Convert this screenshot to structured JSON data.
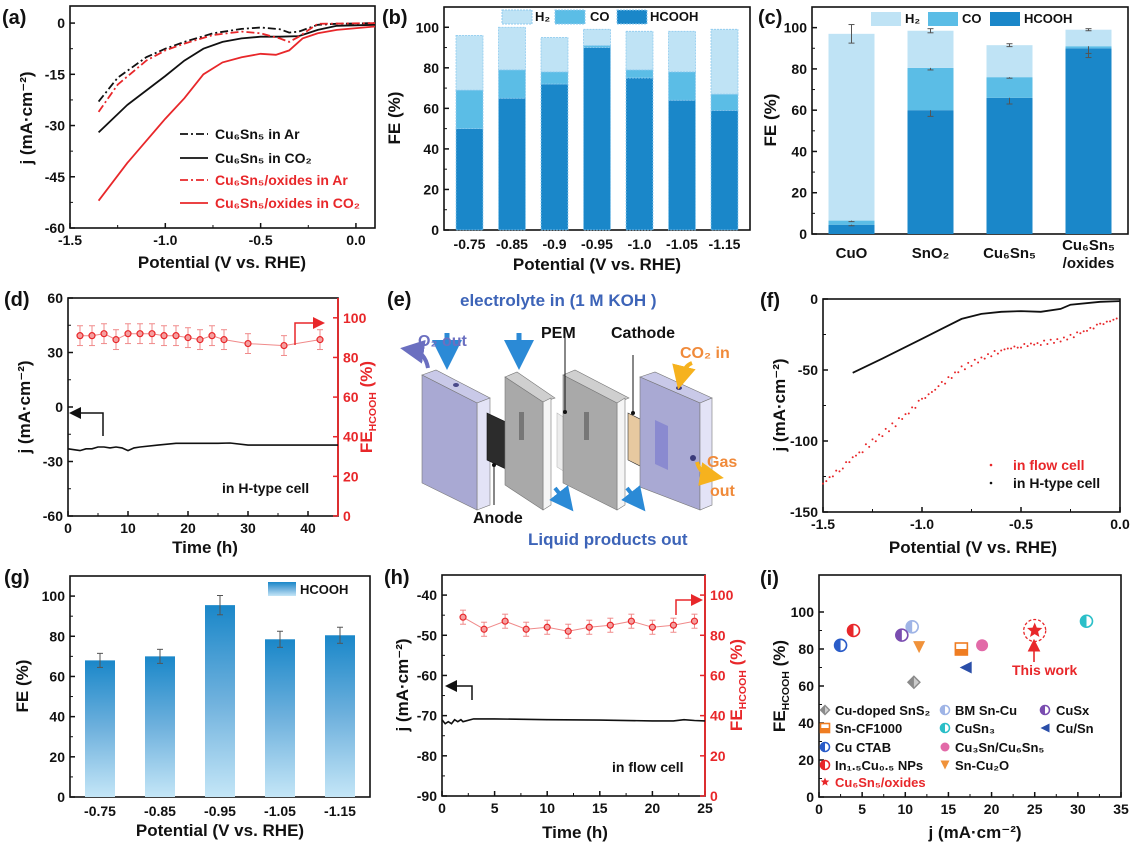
{
  "colors": {
    "hcooh": "#1a87c9",
    "co": "#5bbde6",
    "h2": "#bfe3f5",
    "red": "#e8272a",
    "black": "#111111",
    "blue_text": "#3d64b8",
    "orange_text": "#f08a3a"
  },
  "chart_data": [
    {
      "panel": "(a)",
      "type": "line",
      "xlabel": "Potential (V vs. RHE)",
      "ylabel": "j (mA·cm⁻²)",
      "xlim": [
        -1.5,
        0.1
      ],
      "ylim": [
        -60,
        5
      ],
      "xticks": [
        -1.5,
        -1.0,
        -0.5,
        0.0
      ],
      "xtick_labels": [
        "-1.5",
        "-1.0",
        "-0.5",
        "0.0"
      ],
      "yticks": [
        0,
        -15,
        -30,
        -45,
        -60
      ],
      "ytick_labels": [
        "0",
        "-15",
        "-30",
        "-45",
        "-60"
      ],
      "legend": "inside-right",
      "series": [
        {
          "name": "Cu₆Sn₅ in Ar",
          "color": "#111111",
          "style": "dash-dot",
          "x": [
            -1.35,
            -1.25,
            -1.1,
            -1.0,
            -0.9,
            -0.75,
            -0.6,
            -0.5,
            -0.4,
            -0.35,
            -0.3,
            -0.2,
            -0.1,
            0.1
          ],
          "y": [
            -23,
            -16,
            -10,
            -7.5,
            -5.5,
            -3,
            -1.7,
            -1.3,
            -1.8,
            -2.8,
            -2.5,
            -0.5,
            -0.2,
            0
          ]
        },
        {
          "name": "Cu₆Sn₅ in CO₂",
          "color": "#111111",
          "style": "solid",
          "x": [
            -1.35,
            -1.2,
            -1.0,
            -0.9,
            -0.8,
            -0.7,
            -0.6,
            -0.5,
            -0.4,
            -0.3,
            -0.2,
            -0.1,
            0.1
          ],
          "y": [
            -32,
            -24,
            -15.5,
            -11,
            -7.5,
            -5.5,
            -4.5,
            -4,
            -4,
            -3.8,
            -2,
            -0.8,
            -0.5
          ]
        },
        {
          "name": "Cu₆Sn₅/oxides in Ar",
          "color": "#e8272a",
          "style": "dash-dot",
          "x": [
            -1.35,
            -1.25,
            -1.1,
            -1.0,
            -0.9,
            -0.75,
            -0.6,
            -0.5,
            -0.4,
            -0.35,
            -0.3,
            -0.2,
            0.1
          ],
          "y": [
            -26,
            -18,
            -11,
            -8,
            -6,
            -3.5,
            -2.5,
            -3,
            -4.5,
            -5.5,
            -4,
            -0.2,
            0
          ]
        },
        {
          "name": "Cu₆Sn₅/oxides in CO₂",
          "color": "#e8272a",
          "style": "solid",
          "x": [
            -1.35,
            -1.2,
            -1.0,
            -0.9,
            -0.8,
            -0.7,
            -0.6,
            -0.5,
            -0.42,
            -0.35,
            -0.28,
            -0.2,
            -0.1,
            0.1
          ],
          "y": [
            -52,
            -41,
            -28,
            -22,
            -15,
            -11.5,
            -10,
            -9,
            -9.3,
            -8,
            -4.5,
            -3,
            -2,
            -1
          ]
        }
      ]
    },
    {
      "panel": "(b)",
      "type": "bar",
      "stacked": true,
      "xlabel": "Potential (V vs. RHE)",
      "ylabel": "FE (%)",
      "ylim": [
        0,
        110
      ],
      "yticks": [
        0,
        20,
        40,
        60,
        80,
        100
      ],
      "ytick_labels": [
        "0",
        "20",
        "40",
        "60",
        "80",
        "100"
      ],
      "categories": [
        "-0.75",
        "-0.85",
        "-0.9",
        "-0.95",
        "-1.0",
        "-1.05",
        "-1.15"
      ],
      "legend": "top",
      "series": [
        {
          "name": "HCOOH",
          "color": "#1a87c9",
          "values": [
            50,
            65,
            72,
            90,
            75,
            64,
            59
          ]
        },
        {
          "name": "CO",
          "color": "#5bbde6",
          "values": [
            19,
            14,
            6,
            1,
            4,
            14,
            8
          ]
        },
        {
          "name": "H₂",
          "color": "#bfe3f5",
          "values": [
            27,
            21,
            17,
            8,
            19,
            20,
            32
          ]
        }
      ]
    },
    {
      "panel": "(c)",
      "type": "bar",
      "stacked": true,
      "xlabel": "",
      "ylabel": "FE (%)",
      "ylim": [
        0,
        110
      ],
      "yticks": [
        0,
        20,
        40,
        60,
        80,
        100
      ],
      "ytick_labels": [
        "0",
        "20",
        "40",
        "60",
        "80",
        "100"
      ],
      "categories": [
        "CuO",
        "SnO₂",
        "Cu₆Sn₅",
        "Cu₆Sn₅ /oxides"
      ],
      "legend": "top",
      "series": [
        {
          "name": "HCOOH",
          "color": "#1a87c9",
          "values": [
            4.5,
            60,
            66,
            90
          ],
          "errors": [
            0.5,
            3,
            3,
            4.5
          ]
        },
        {
          "name": "CO",
          "color": "#5bbde6",
          "values": [
            2,
            20.5,
            10,
            1
          ],
          "errors": [
            0.5,
            1,
            0.5,
            3.5
          ]
        },
        {
          "name": "H₂",
          "color": "#bfe3f5",
          "values": [
            90.5,
            18,
            15.5,
            8
          ],
          "errors": [
            4.5,
            1,
            0.7,
            0.5
          ]
        }
      ]
    },
    {
      "panel": "(d)",
      "type": "line",
      "xlabel": "Time (h)",
      "ylabel": "j (mA·cm⁻²)",
      "ylabel_right": {
        "main": "FE",
        "sub": "HCOOH",
        "tail": " (%)"
      },
      "xlim": [
        0,
        45
      ],
      "ylim": [
        -60,
        60
      ],
      "ylim_right": [
        0,
        110
      ],
      "xticks": [
        0,
        10,
        20,
        30,
        40
      ],
      "xtick_labels": [
        "0",
        "10",
        "20",
        "30",
        "40"
      ],
      "yticks": [
        60,
        30,
        0,
        -30,
        -60
      ],
      "ytick_labels": [
        "60",
        "30",
        "0",
        "-30",
        "-60"
      ],
      "yticks_right": [
        0,
        20,
        40,
        60,
        80,
        100
      ],
      "ytick_right_labels": [
        "0",
        "20",
        "40",
        "60",
        "80",
        "100"
      ],
      "annotation": "in H-type cell",
      "current": {
        "color": "#111111",
        "x": [
          0,
          1,
          2,
          3,
          4,
          5,
          6,
          7,
          8,
          9,
          10,
          11,
          12,
          15,
          18,
          20,
          25,
          27,
          30,
          35,
          40,
          45
        ],
        "y": [
          -23,
          -23.5,
          -24,
          -23,
          -23,
          -22,
          -22,
          -22.5,
          -22,
          -22.5,
          -24,
          -22.5,
          -22,
          -21,
          -20,
          -20,
          -20,
          -19.8,
          -21,
          -21,
          -21,
          -21
        ]
      },
      "fe": {
        "color": "#e8272a",
        "x": [
          2,
          4,
          6,
          8,
          10,
          12,
          14,
          16,
          18,
          20,
          22,
          24,
          26,
          30,
          36,
          42
        ],
        "y": [
          91,
          91,
          92,
          89,
          92,
          92,
          92,
          91,
          91,
          90,
          89,
          91,
          89,
          87,
          86,
          89
        ],
        "errors": [
          5,
          5,
          5,
          5,
          5,
          5,
          5,
          5,
          5,
          5,
          5,
          5,
          5,
          5,
          5,
          5
        ]
      }
    },
    {
      "panel": "(f)",
      "type": "line",
      "xlabel": "Potential (V vs. RHE)",
      "ylabel": "j (mA·cm⁻²)",
      "xlim": [
        -1.5,
        0
      ],
      "ylim": [
        -150,
        0
      ],
      "xticks": [
        -1.5,
        -1.0,
        -0.5,
        0.0
      ],
      "xtick_labels": [
        "-1.5",
        "-1.0",
        "-0.5",
        "0.0"
      ],
      "yticks": [
        0,
        -50,
        -100,
        -150
      ],
      "ytick_labels": [
        "0",
        "-50",
        "-100",
        "-150"
      ],
      "legend": "bottom-right",
      "series": [
        {
          "name": "in flow cell",
          "color": "#e8272a",
          "style": "dots",
          "x": [
            -1.5,
            -1.4,
            -1.3,
            -1.2,
            -1.1,
            -1.0,
            -0.9,
            -0.8,
            -0.7,
            -0.6,
            -0.5,
            -0.4,
            -0.3,
            -0.2,
            -0.1,
            0
          ],
          "y": [
            -130,
            -118,
            -106,
            -95,
            -84,
            -71,
            -60,
            -49,
            -42,
            -36,
            -33,
            -31,
            -29,
            -24,
            -18,
            -13
          ]
        },
        {
          "name": "in H-type cell",
          "color": "#111111",
          "style": "solid",
          "x": [
            -1.35,
            -1.2,
            -1.0,
            -0.9,
            -0.8,
            -0.7,
            -0.6,
            -0.5,
            -0.4,
            -0.3,
            -0.25,
            -0.1,
            0
          ],
          "y": [
            -52,
            -42,
            -28,
            -21,
            -14,
            -10.5,
            -9,
            -8.5,
            -9,
            -7,
            -4,
            -2,
            -1.5
          ]
        }
      ]
    },
    {
      "panel": "(g)",
      "type": "bar",
      "xlabel": "Potential (V vs. RHE)",
      "ylabel": "FE (%)",
      "ylim": [
        0,
        110
      ],
      "yticks": [
        0,
        20,
        40,
        60,
        80,
        100
      ],
      "ytick_labels": [
        "0",
        "20",
        "40",
        "60",
        "80",
        "100"
      ],
      "categories": [
        "-0.75",
        "-0.85",
        "-0.95",
        "-1.05",
        "-1.15"
      ],
      "legend": "top-right",
      "series": [
        {
          "name": "HCOOH",
          "color": "#1a87c9",
          "values": [
            68,
            70,
            95.5,
            78.5,
            80.5
          ],
          "errors": [
            3.5,
            3.5,
            4.8,
            4,
            4
          ]
        }
      ]
    },
    {
      "panel": "(h)",
      "type": "line",
      "xlabel": "Time (h)",
      "ylabel": "j (mA·cm⁻²)",
      "ylabel_right": {
        "main": "FE",
        "sub": "HCOOH",
        "tail": " (%)"
      },
      "xlim": [
        0,
        25
      ],
      "ylim": [
        -90,
        -35
      ],
      "ylim_right": [
        0,
        110
      ],
      "xticks": [
        0,
        5,
        10,
        15,
        20,
        25
      ],
      "xtick_labels": [
        "0",
        "5",
        "10",
        "15",
        "20",
        "25"
      ],
      "yticks": [
        -40,
        -50,
        -60,
        -70,
        -80,
        -90
      ],
      "ytick_labels": [
        "-40",
        "-50",
        "-60",
        "-70",
        "-80",
        "-90"
      ],
      "yticks_right": [
        0,
        20,
        40,
        60,
        80,
        100
      ],
      "ytick_right_labels": [
        "0",
        "20",
        "40",
        "60",
        "80",
        "100"
      ],
      "annotation": "in flow cell",
      "current": {
        "color": "#111111",
        "x": [
          0,
          0.3,
          0.6,
          0.9,
          1.2,
          1.5,
          1.8,
          2,
          3,
          5,
          10,
          15,
          20,
          22,
          23,
          24,
          25
        ],
        "y": [
          -71,
          -72,
          -71.5,
          -72,
          -71,
          -71.5,
          -71,
          -71.5,
          -70.8,
          -70.8,
          -71,
          -71.1,
          -71.3,
          -71.3,
          -71,
          -71.2,
          -71.3
        ]
      },
      "fe": {
        "color": "#e8272a",
        "x": [
          2,
          4,
          6,
          8,
          10,
          12,
          14,
          16,
          18,
          20,
          22,
          24
        ],
        "y": [
          89,
          83,
          87,
          83,
          84,
          82,
          84,
          85,
          87,
          84,
          85,
          87
        ],
        "errors": [
          3.5,
          3.5,
          3.5,
          3.5,
          3.5,
          3.5,
          3.5,
          3.5,
          3.5,
          3.5,
          3.5,
          3.5
        ]
      }
    },
    {
      "panel": "(i)",
      "type": "scatter",
      "xlabel": "j (mA·cm⁻²)",
      "ylabel": {
        "main": "FE",
        "sub": "HCOOH",
        "tail": " (%)"
      },
      "xlim": [
        0,
        35
      ],
      "ylim": [
        0,
        120
      ],
      "xticks": [
        0,
        5,
        10,
        15,
        20,
        25,
        30,
        35
      ],
      "xtick_labels": [
        "0",
        "5",
        "10",
        "15",
        "20",
        "25",
        "30",
        "35"
      ],
      "yticks": [
        0,
        20,
        40,
        60,
        80,
        100
      ],
      "ytick_labels": [
        "0",
        "20",
        "40",
        "60",
        "80",
        "100"
      ],
      "legend": "bottom-left",
      "annotation": "This work",
      "points": [
        {
          "name": "Cu-doped SnS₂",
          "x": 11,
          "y": 62,
          "marker": "diamond",
          "color": "#8a8a8a"
        },
        {
          "name": "BM Sn-Cu",
          "x": 10.8,
          "y": 92,
          "marker": "half-circle",
          "color": "#9fb4e6"
        },
        {
          "name": "CuSx",
          "x": 9.6,
          "y": 87.5,
          "marker": "half-circle",
          "color": "#7a4db0"
        },
        {
          "name": "Sn-CF1000",
          "x": 16.5,
          "y": 80,
          "marker": "half-square",
          "color": "#ef7d22"
        },
        {
          "name": "CuSn₃",
          "x": 31,
          "y": 95,
          "marker": "half-circle",
          "color": "#2bbfc8"
        },
        {
          "name": "Cu/Sn",
          "x": 17,
          "y": 70,
          "marker": "triangle-left",
          "color": "#2a4ea8"
        },
        {
          "name": "Cu CTAB",
          "x": 2.5,
          "y": 82,
          "marker": "half-circle",
          "color": "#2a5cc8"
        },
        {
          "name": "Cu₃Sn/Cu₆Sn₅",
          "x": 18.9,
          "y": 82,
          "marker": "circle",
          "color": "#e26aa8"
        },
        {
          "name": "In₁.₅Cu₀.₅ NPs",
          "x": 4,
          "y": 90,
          "marker": "half-circle",
          "color": "#e8272a"
        },
        {
          "name": "Sn-Cu₂O",
          "x": 11.6,
          "y": 81,
          "marker": "triangle-down",
          "color": "#f0923a"
        },
        {
          "name": "Cu₆Sn₅/oxides",
          "x": 25,
          "y": 90,
          "marker": "star",
          "color": "#e8272a"
        }
      ]
    }
  ],
  "diagram": {
    "panel": "(e)",
    "electrolyte_in": "electrolyte in (1 M KOH )",
    "pem": "PEM",
    "cathode": "Cathode",
    "o2_out": "O₂ out",
    "co2_in": "CO₂ in",
    "gas": "Gas",
    "out": "out",
    "anode": "Anode",
    "liquid_out": "Liquid products out"
  }
}
